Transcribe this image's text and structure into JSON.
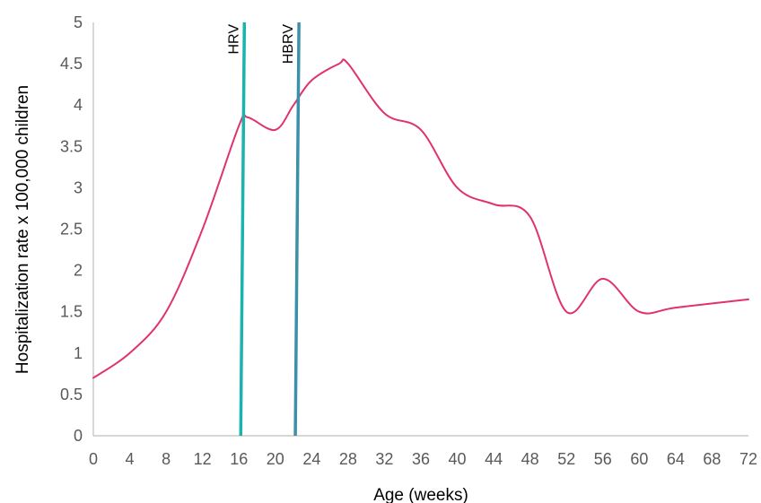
{
  "chart_data": {
    "type": "line",
    "title": "",
    "xlabel": "Age (weeks)",
    "ylabel": "Hospitalization rate x 100,000 children",
    "xlim": [
      0,
      72
    ],
    "ylim": [
      0,
      5
    ],
    "x_ticks": [
      0,
      4,
      8,
      12,
      16,
      20,
      24,
      28,
      32,
      36,
      40,
      44,
      48,
      52,
      56,
      60,
      64,
      68,
      72
    ],
    "y_ticks": [
      0,
      0.5,
      1,
      1.5,
      2,
      2.5,
      3,
      3.5,
      4,
      4.5,
      5
    ],
    "x_tick_labels": [
      "0",
      "4",
      "8",
      "12",
      "16",
      "20",
      "24",
      "28",
      "32",
      "36",
      "40",
      "44",
      "48",
      "52",
      "56",
      "60",
      "64",
      "68",
      "72"
    ],
    "y_tick_labels": [
      "0",
      "0.5",
      "1",
      "1.5",
      "2",
      "2.5",
      "3",
      "3.5",
      "4",
      "4.5",
      "5"
    ],
    "grid": false,
    "legend": "none",
    "series": [
      {
        "color": "#e0336e",
        "x": [
          0,
          4,
          8,
          12,
          16,
          17,
          20,
          22,
          24,
          27,
          28,
          32,
          36,
          40,
          44,
          48,
          52,
          56,
          60,
          64,
          72
        ],
        "values": [
          0.7,
          1.0,
          1.5,
          2.5,
          3.75,
          3.85,
          3.7,
          4.0,
          4.3,
          4.5,
          4.5,
          3.9,
          3.7,
          3.0,
          2.8,
          2.65,
          1.5,
          1.9,
          1.5,
          1.55,
          1.65
        ]
      }
    ],
    "markers": [
      {
        "label": "HRV",
        "color": "#1ab3b0",
        "x_bottom": 16.2,
        "x_top": 16.6,
        "y_bottom": 0,
        "y_top": 5
      },
      {
        "label": "HBRV",
        "color": "#3a91a8",
        "x_bottom": 22.2,
        "x_top": 22.6,
        "y_bottom": 0,
        "y_top": 5
      }
    ]
  }
}
